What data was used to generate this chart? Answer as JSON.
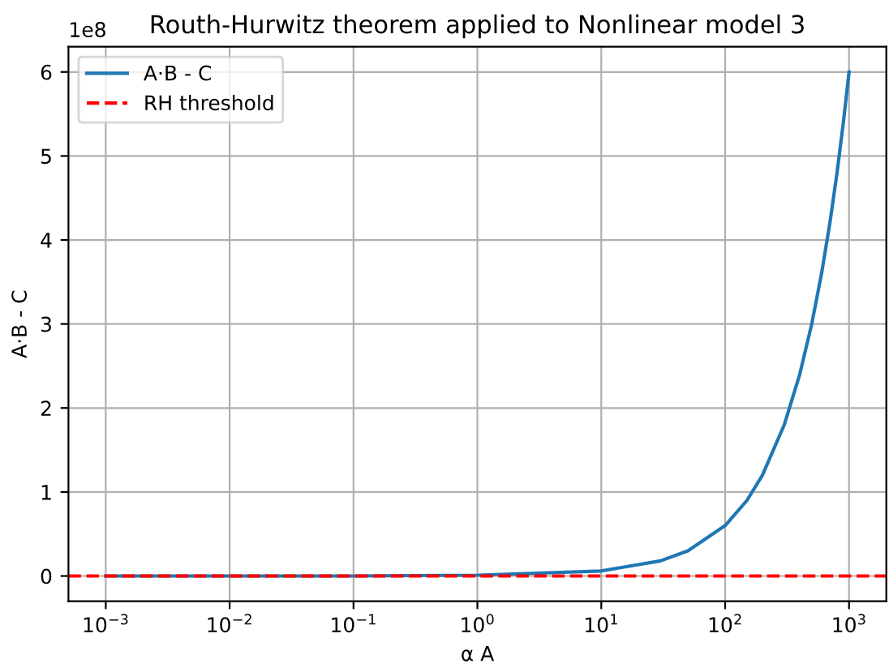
{
  "chart_data": {
    "type": "line",
    "title": "Routh-Hurwitz theorem applied to Nonlinear model 3",
    "xlabel": "α A",
    "ylabel": "A·B - C",
    "annotations": [
      "1e8"
    ],
    "log": "x",
    "grid": true,
    "legend": "top left",
    "xlim": [
      0.0005,
      2000
    ],
    "xticks": [
      {
        "value": 0.001,
        "label": "10$^{−3}$"
      },
      {
        "value": 0.01,
        "label": "10$^{−2}$"
      },
      {
        "value": 0.1,
        "label": "10$^{−1}$"
      },
      {
        "value": 1,
        "label": "10$^{0}$"
      },
      {
        "value": 10,
        "label": "10$^{1}$"
      },
      {
        "value": 100,
        "label": "10$^{2}$"
      },
      {
        "value": 1000,
        "label": "10$^{3}$"
      }
    ],
    "ylim": [
      -0.3,
      6.3
    ],
    "yticks": [
      0,
      1,
      2,
      3,
      4,
      5,
      6
    ],
    "series": [
      {
        "name": "A·B - C",
        "color": "#1f77b4",
        "x": [
          0.001,
          0.01,
          0.1,
          1,
          10,
          30,
          50,
          100,
          150,
          200,
          300,
          400,
          500,
          600,
          700,
          800,
          900,
          1000
        ],
        "values": [
          0,
          0,
          0,
          0.01,
          0.06,
          0.18,
          0.3,
          0.6,
          0.9,
          1.2,
          1.8,
          2.4,
          3.0,
          3.6,
          4.2,
          4.8,
          5.4,
          6.0
        ]
      }
    ],
    "ref_lines": [
      {
        "axis": "y",
        "value": 0,
        "label": "RH threshold",
        "color": "#ff0000",
        "line_style": "dashed"
      }
    ]
  }
}
